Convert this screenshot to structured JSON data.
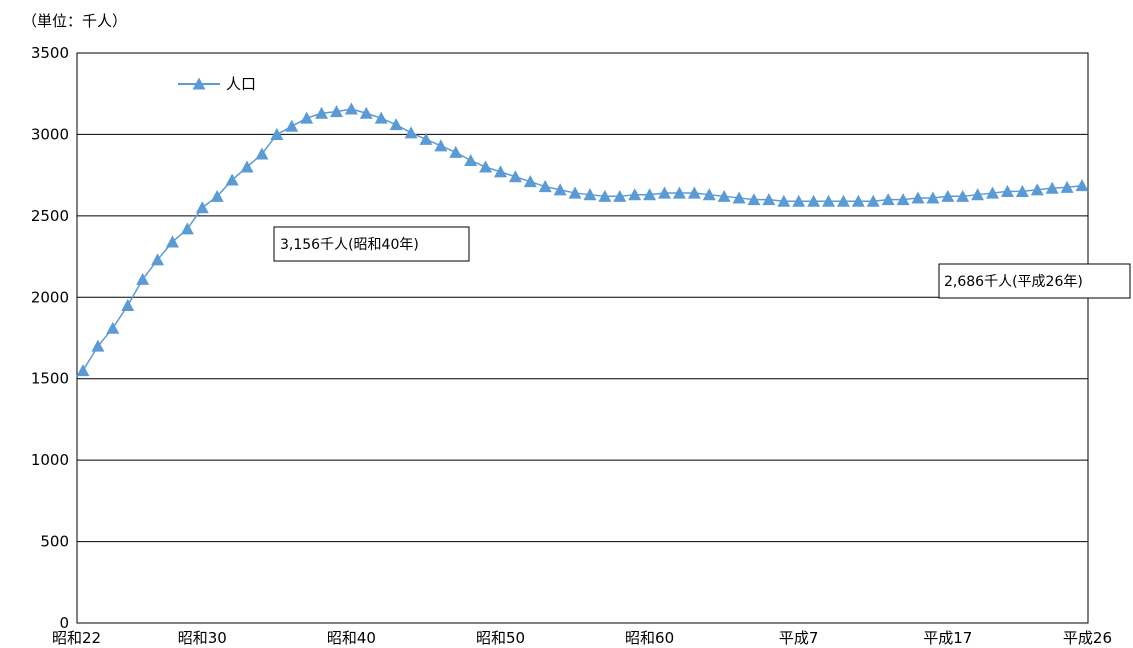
{
  "chart_data": {
    "type": "line",
    "unit_label": "（単位：千人）",
    "ylim": [
      0,
      3500
    ],
    "y_ticks": [
      0,
      500,
      1000,
      1500,
      2000,
      2500,
      3000,
      3500
    ],
    "grid": true,
    "legend_position": "top-left",
    "x_tick_labels": [
      "昭和22",
      "昭和30",
      "昭和40",
      "昭和50",
      "昭和60",
      "平成7",
      "平成17",
      "平成26"
    ],
    "x": [
      "昭和22",
      "昭和23",
      "昭和24",
      "昭和25",
      "昭和26",
      "昭和27",
      "昭和28",
      "昭和29",
      "昭和30",
      "昭和31",
      "昭和32",
      "昭和33",
      "昭和34",
      "昭和35",
      "昭和36",
      "昭和37",
      "昭和38",
      "昭和39",
      "昭和40",
      "昭和41",
      "昭和42",
      "昭和43",
      "昭和44",
      "昭和45",
      "昭和46",
      "昭和47",
      "昭和48",
      "昭和49",
      "昭和50",
      "昭和51",
      "昭和52",
      "昭和53",
      "昭和54",
      "昭和55",
      "昭和56",
      "昭和57",
      "昭和58",
      "昭和59",
      "昭和60",
      "昭和61",
      "昭和62",
      "昭和63",
      "平成元",
      "平成2",
      "平成3",
      "平成4",
      "平成5",
      "平成6",
      "平成7",
      "平成8",
      "平成9",
      "平成10",
      "平成11",
      "平成12",
      "平成13",
      "平成14",
      "平成15",
      "平成16",
      "平成17",
      "平成18",
      "平成19",
      "平成20",
      "平成21",
      "平成22",
      "平成23",
      "平成24",
      "平成25",
      "平成26"
    ],
    "series": [
      {
        "name": "人口",
        "color": "#5b9bd5",
        "values": [
          1550,
          1700,
          1810,
          1950,
          2110,
          2230,
          2340,
          2420,
          2550,
          2620,
          2720,
          2800,
          2880,
          3000,
          3050,
          3100,
          3130,
          3140,
          3156,
          3130,
          3100,
          3060,
          3010,
          2970,
          2930,
          2890,
          2840,
          2800,
          2770,
          2740,
          2710,
          2680,
          2660,
          2640,
          2630,
          2620,
          2620,
          2630,
          2630,
          2640,
          2640,
          2640,
          2630,
          2620,
          2610,
          2600,
          2600,
          2590,
          2590,
          2590,
          2590,
          2590,
          2590,
          2590,
          2600,
          2600,
          2610,
          2610,
          2620,
          2620,
          2630,
          2640,
          2650,
          2650,
          2660,
          2670,
          2675,
          2686
        ]
      }
    ],
    "annotations": [
      {
        "text": "3,156千人(昭和40年)"
      },
      {
        "text": "2,686千人(平成26年)"
      }
    ]
  }
}
